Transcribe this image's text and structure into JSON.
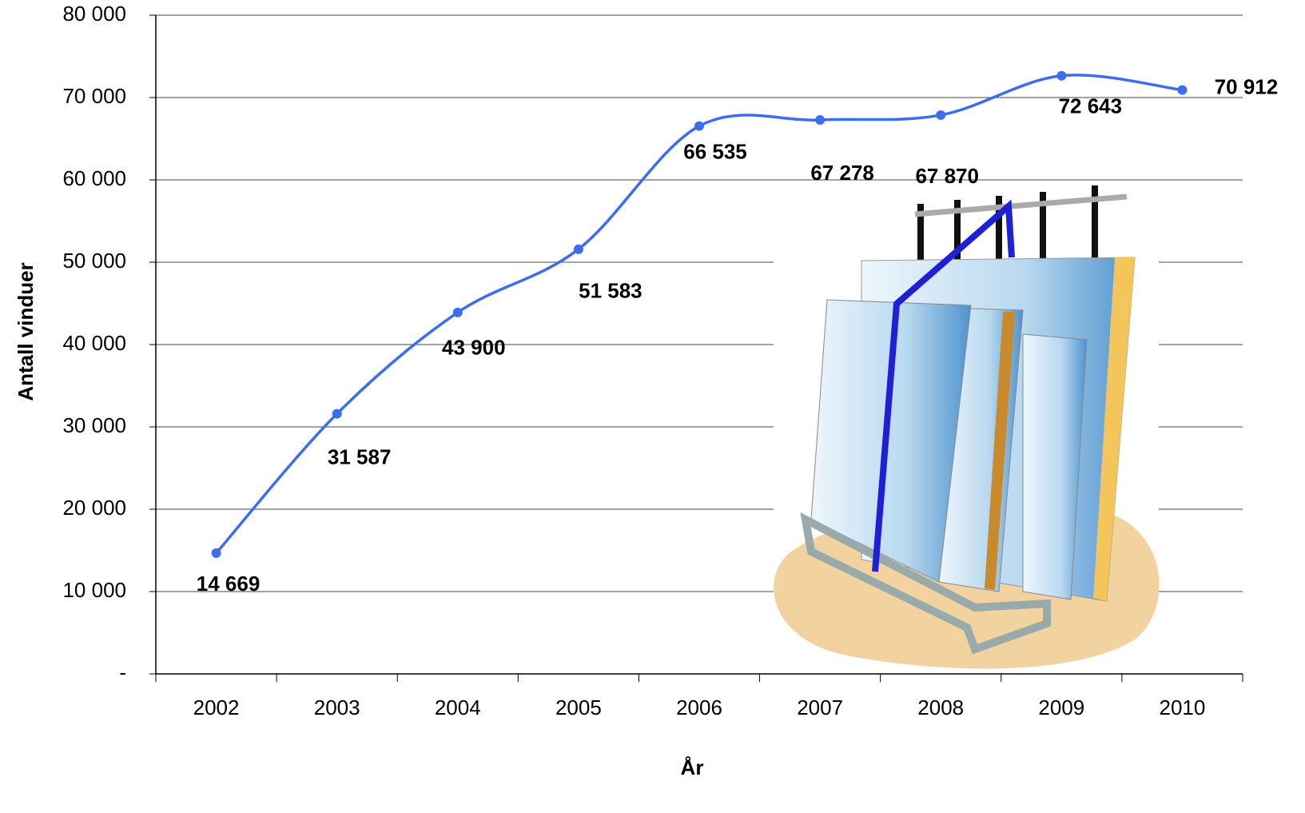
{
  "chart_data": {
    "type": "line",
    "x_label": "År",
    "y_label": "Antall vinduer",
    "categories": [
      "2002",
      "2003",
      "2004",
      "2005",
      "2006",
      "2007",
      "2008",
      "2009",
      "2010"
    ],
    "values": [
      14669,
      31587,
      43900,
      51583,
      66535,
      67278,
      67870,
      72643,
      70912
    ],
    "value_labels": [
      "14 669",
      "31 587",
      "43 900",
      "51 583",
      "66 535",
      "67 278",
      "67 870",
      "72 643",
      "70 912"
    ],
    "color": "#3a6df0",
    "ylim": [
      0,
      80000
    ],
    "yticks": [
      {
        "value": 0,
        "label": "-"
      },
      {
        "value": 10000,
        "label": "10 000"
      },
      {
        "value": 20000,
        "label": "20 000"
      },
      {
        "value": 30000,
        "label": "30 000"
      },
      {
        "value": 40000,
        "label": "40 000"
      },
      {
        "value": 50000,
        "label": "50 000"
      },
      {
        "value": 60000,
        "label": "60 000"
      },
      {
        "value": 70000,
        "label": "70 000"
      },
      {
        "value": 80000,
        "label": "80 000"
      }
    ],
    "grid": true
  }
}
